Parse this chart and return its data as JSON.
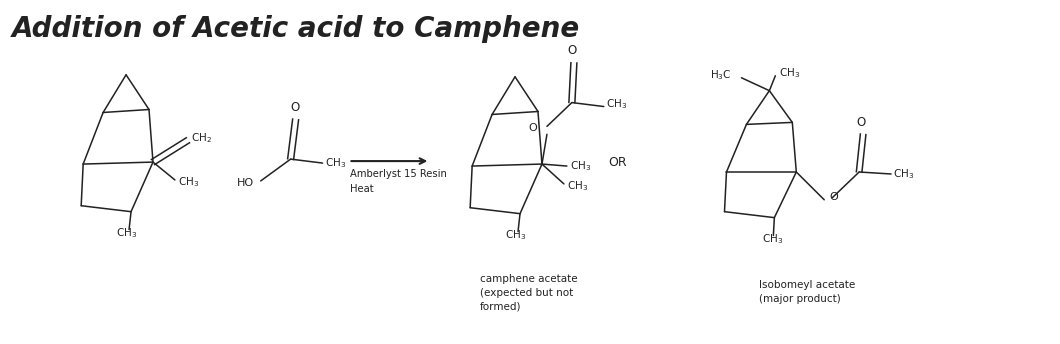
{
  "title": "Addition of Acetic acid to Camphene",
  "title_fontsize": 20,
  "title_style": "italic",
  "title_font": "DejaVu Sans",
  "bg_color": "#ffffff",
  "text_color": "#222222",
  "line_color": "#222222",
  "fig_width": 10.6,
  "fig_height": 3.44,
  "dpi": 100,
  "arrow_label_line1": "Amberlyst 15 Resin",
  "arrow_label_line2": "Heat",
  "or_label": "OR",
  "caption1_line1": "camphene acetate",
  "caption1_line2": "(expected but not",
  "caption1_line3": "formed)",
  "caption2_line1": "Isobomeyl acetate",
  "caption2_line2": "(major product)"
}
